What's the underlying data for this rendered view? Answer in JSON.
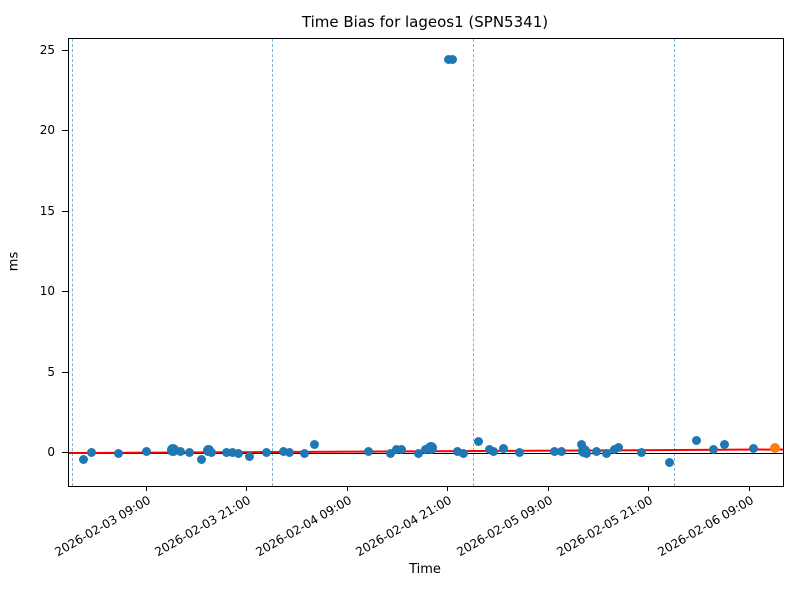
{
  "chart_data": {
    "type": "scatter",
    "title": "Time Bias for lageos1 (SPN5341)",
    "xlabel": "Time",
    "ylabel": "ms",
    "x_epoch": "2026-02-03 00:00",
    "xlim_hours": [
      -0.3,
      85.0
    ],
    "ylim": [
      -2.05,
      25.75
    ],
    "grid": false,
    "legend": "none",
    "y_ticks": [
      0,
      5,
      10,
      15,
      20,
      25
    ],
    "x_ticks": [
      {
        "hours": 9,
        "label": "2026-02-03 09:00"
      },
      {
        "hours": 21,
        "label": "2026-02-03 21:00"
      },
      {
        "hours": 33,
        "label": "2026-02-04 09:00"
      },
      {
        "hours": 45,
        "label": "2026-02-04 21:00"
      },
      {
        "hours": 57,
        "label": "2026-02-05 09:00"
      },
      {
        "hours": 69,
        "label": "2026-02-05 21:00"
      },
      {
        "hours": 81,
        "label": "2026-02-06 09:00"
      }
    ],
    "vlines": {
      "hours": [
        0,
        24,
        48,
        72
      ],
      "color": "#74a9cf",
      "style": "dashed",
      "name": "day-boundary"
    },
    "zero_line": {
      "y": 0,
      "color": "#000000"
    },
    "trend_line": {
      "x0_hours": -0.3,
      "y0": 0.0,
      "x1_hours": 85.0,
      "y1": 0.22,
      "color": "#ff0000"
    },
    "colors": {
      "points": "#1f77b4",
      "highlight_point": "#ff7f0e",
      "trend": "#ff0000",
      "vline": "#74a9cf"
    },
    "series": [
      {
        "name": "time-bias",
        "color": "#1f77b4",
        "marker": "circle",
        "default_radius": 4.5,
        "points": [
          {
            "t": "2026-02-03 01:25",
            "ms": -0.4
          },
          {
            "t": "2026-02-03 02:25",
            "ms": 0.05
          },
          {
            "t": "2026-02-03 05:35",
            "ms": 0.0
          },
          {
            "t": "2026-02-03 09:00",
            "ms": 0.1
          },
          {
            "t": "2026-02-03 12:10",
            "ms": 0.2,
            "r": 6
          },
          {
            "t": "2026-02-03 13:00",
            "ms": 0.1
          },
          {
            "t": "2026-02-03 14:05",
            "ms": 0.05
          },
          {
            "t": "2026-02-03 15:30",
            "ms": -0.4
          },
          {
            "t": "2026-02-03 16:20",
            "ms": 0.15,
            "r": 5.5
          },
          {
            "t": "2026-02-03 16:45",
            "ms": 0.05
          },
          {
            "t": "2026-02-03 18:30",
            "ms": 0.05
          },
          {
            "t": "2026-02-03 19:15",
            "ms": 0.05
          },
          {
            "t": "2026-02-03 20:00",
            "ms": 0.0
          },
          {
            "t": "2026-02-03 21:15",
            "ms": -0.2
          },
          {
            "t": "2026-02-03 23:15",
            "ms": 0.05
          },
          {
            "t": "2026-02-04 01:20",
            "ms": 0.1
          },
          {
            "t": "2026-02-04 02:00",
            "ms": 0.05
          },
          {
            "t": "2026-02-04 03:50",
            "ms": 0.0
          },
          {
            "t": "2026-02-04 05:00",
            "ms": 0.55
          },
          {
            "t": "2026-02-04 11:30",
            "ms": 0.1
          },
          {
            "t": "2026-02-04 14:10",
            "ms": -0.05
          },
          {
            "t": "2026-02-04 14:50",
            "ms": 0.25
          },
          {
            "t": "2026-02-04 15:25",
            "ms": 0.25
          },
          {
            "t": "2026-02-04 17:30",
            "ms": -0.05
          },
          {
            "t": "2026-02-04 18:20",
            "ms": 0.25
          },
          {
            "t": "2026-02-04 19:00",
            "ms": 0.3,
            "r": 6
          },
          {
            "t": "2026-02-04 21:00",
            "ms": 24.5
          },
          {
            "t": "2026-02-04 21:30",
            "ms": 24.5
          },
          {
            "t": "2026-02-04 22:10",
            "ms": 0.1
          },
          {
            "t": "2026-02-04 22:50",
            "ms": -0.05
          },
          {
            "t": "2026-02-05 00:35",
            "ms": 0.7
          },
          {
            "t": "2026-02-05 01:55",
            "ms": 0.25
          },
          {
            "t": "2026-02-05 02:25",
            "ms": 0.1
          },
          {
            "t": "2026-02-05 03:35",
            "ms": 0.3
          },
          {
            "t": "2026-02-05 05:30",
            "ms": 0.05
          },
          {
            "t": "2026-02-05 09:45",
            "ms": 0.1
          },
          {
            "t": "2026-02-05 10:30",
            "ms": 0.1
          },
          {
            "t": "2026-02-05 12:55",
            "ms": 0.5
          },
          {
            "t": "2026-02-05 13:15",
            "ms": 0.1,
            "r": 6
          },
          {
            "t": "2026-02-05 13:35",
            "ms": -0.05
          },
          {
            "t": "2026-02-05 14:40",
            "ms": 0.1
          },
          {
            "t": "2026-02-05 15:55",
            "ms": -0.05
          },
          {
            "t": "2026-02-05 16:50",
            "ms": 0.2
          },
          {
            "t": "2026-02-05 17:20",
            "ms": 0.35
          },
          {
            "t": "2026-02-05 20:05",
            "ms": 0.05
          },
          {
            "t": "2026-02-05 23:25",
            "ms": -0.6
          },
          {
            "t": "2026-02-06 02:40",
            "ms": 0.75
          },
          {
            "t": "2026-02-06 04:40",
            "ms": 0.25
          },
          {
            "t": "2026-02-06 06:00",
            "ms": 0.55
          },
          {
            "t": "2026-02-06 09:25",
            "ms": 0.3
          }
        ]
      },
      {
        "name": "latest-point",
        "color": "#ff7f0e",
        "marker": "circle",
        "default_radius": 5,
        "points": [
          {
            "t": "2026-02-06 12:00",
            "ms": 0.3
          }
        ]
      }
    ]
  }
}
